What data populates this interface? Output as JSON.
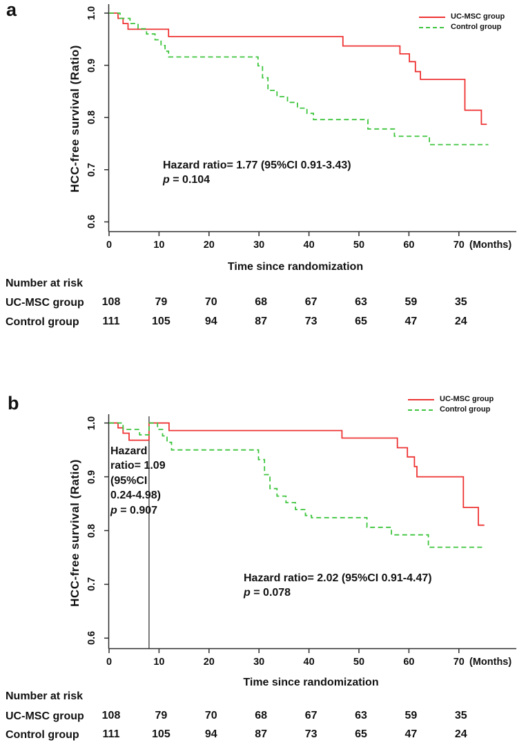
{
  "figure_labels": {
    "panel_a": "a",
    "panel_b": "b"
  },
  "chart_data": [
    {
      "type": "line",
      "kind": "kaplan-meier-step",
      "panel": "a",
      "xlabel": "Time since randomization",
      "x_unit": "(Months)",
      "ylabel": "HCC-free survival (Ratio)",
      "xticks": [
        0,
        10,
        20,
        30,
        40,
        50,
        60,
        70
      ],
      "yticks": [
        "1.0",
        "0.9",
        "0.8",
        "0.7",
        "0.6"
      ],
      "xlim": [
        0,
        79
      ],
      "ylim": [
        0.58,
        1.0
      ],
      "grid": false,
      "legend_position": "top-right",
      "legend": [
        {
          "label": "UC-MSC group",
          "color": "#ee3232",
          "line_style": "solid"
        },
        {
          "label": "Control group",
          "color": "#3cc43c",
          "line_style": "dashed"
        }
      ],
      "series": [
        {
          "name": "UC-MSC group",
          "color": "#ee3232",
          "line_style": "solid",
          "end_month": 75.6,
          "steps": [
            [
              0,
              1.0
            ],
            [
              1.8,
              0.99
            ],
            [
              2.8,
              0.98
            ],
            [
              3.8,
              0.969
            ],
            [
              11.9,
              0.955
            ],
            [
              46.8,
              0.937
            ],
            [
              58.2,
              0.922
            ],
            [
              60.1,
              0.907
            ],
            [
              61.3,
              0.888
            ],
            [
              62.3,
              0.873
            ],
            [
              71.2,
              0.814
            ],
            [
              74.5,
              0.787
            ]
          ]
        },
        {
          "name": "Control group",
          "color": "#3cc43c",
          "line_style": "dashed",
          "end_month": 75.9,
          "steps": [
            [
              0,
              1.0
            ],
            [
              2.2,
              0.99
            ],
            [
              4.2,
              0.98
            ],
            [
              5.8,
              0.97
            ],
            [
              7.5,
              0.96
            ],
            [
              9.2,
              0.949
            ],
            [
              10.4,
              0.938
            ],
            [
              11.2,
              0.927
            ],
            [
              11.9,
              0.916
            ],
            [
              29.8,
              0.899
            ],
            [
              30.7,
              0.876
            ],
            [
              31.8,
              0.852
            ],
            [
              33.6,
              0.84
            ],
            [
              35.7,
              0.829
            ],
            [
              37.7,
              0.818
            ],
            [
              39.6,
              0.808
            ],
            [
              40.9,
              0.796
            ],
            [
              51.8,
              0.778
            ],
            [
              57.1,
              0.764
            ],
            [
              64.1,
              0.748
            ]
          ]
        }
      ],
      "annotations": [
        {
          "lines": [
            "Hazard ratio= 1.77 (95%CI 0.91-3.43)"
          ],
          "p_symbol": "p",
          "p_rest": "= 0.104"
        }
      ],
      "number_at_risk": {
        "header": "Number at risk",
        "times": [
          0,
          10,
          20,
          30,
          40,
          50,
          60,
          70
        ],
        "rows": [
          {
            "label": "UC-MSC group",
            "values": [
              108,
              79,
              70,
              68,
              67,
              63,
              59,
              35
            ]
          },
          {
            "label": "Control group",
            "values": [
              111,
              105,
              94,
              87,
              73,
              65,
              47,
              24
            ]
          }
        ]
      }
    },
    {
      "type": "line",
      "kind": "kaplan-meier-step",
      "panel": "b",
      "xlabel": "Time since randomization",
      "x_unit": "(Months)",
      "ylabel": "HCC-free survival (Ratio)",
      "xticks": [
        0,
        10,
        20,
        30,
        40,
        50,
        60,
        70
      ],
      "yticks": [
        "1.0",
        "0.9",
        "0.8",
        "0.7",
        "0.6"
      ],
      "xlim": [
        0,
        79
      ],
      "ylim": [
        0.58,
        1.0
      ],
      "grid": false,
      "legend_position": "top-right",
      "vline": {
        "x": 8
      },
      "legend": [
        {
          "label": "UC-MSC group",
          "color": "#ee3232",
          "line_style": "solid"
        },
        {
          "label": "Control group",
          "color": "#3cc43c",
          "line_style": "dashed"
        }
      ],
      "series": [
        {
          "name": "UC-MSC group",
          "color": "#ee3232",
          "line_style": "solid",
          "end_month": 75.1,
          "steps": [
            [
              0,
              1.0
            ],
            [
              1.8,
              0.991
            ],
            [
              2.8,
              0.981
            ],
            [
              4.0,
              0.968
            ],
            [
              8.0,
              1.0
            ],
            [
              12.0,
              0.986
            ],
            [
              46.6,
              0.972
            ],
            [
              57.7,
              0.954
            ],
            [
              59.7,
              0.937
            ],
            [
              61.1,
              0.919
            ],
            [
              61.6,
              0.9
            ],
            [
              70.9,
              0.843
            ],
            [
              73.9,
              0.81
            ]
          ]
        },
        {
          "name": "Control group",
          "color": "#3cc43c",
          "line_style": "dashed",
          "end_month": 75.0,
          "steps": [
            [
              0,
              1.0
            ],
            [
              2.8,
              0.988
            ],
            [
              6.1,
              0.978
            ],
            [
              8.0,
              1.0
            ],
            [
              9.7,
              0.988
            ],
            [
              10.7,
              0.976
            ],
            [
              11.6,
              0.964
            ],
            [
              12.5,
              0.95
            ],
            [
              29.9,
              0.932
            ],
            [
              31.1,
              0.904
            ],
            [
              32.2,
              0.878
            ],
            [
              33.6,
              0.864
            ],
            [
              35.4,
              0.852
            ],
            [
              37.3,
              0.839
            ],
            [
              39.3,
              0.828
            ],
            [
              40.5,
              0.824
            ],
            [
              51.6,
              0.806
            ],
            [
              56.5,
              0.792
            ],
            [
              63.9,
              0.769
            ]
          ]
        }
      ],
      "annotations": [
        {
          "lines": [
            "Hazard",
            "ratio= 1.09",
            "(95%CI",
            "0.24-4.98)"
          ],
          "p_symbol": "p",
          "p_rest": "= 0.907"
        },
        {
          "lines": [
            "Hazard ratio= 2.02 (95%CI 0.91-4.47)"
          ],
          "p_symbol": "p",
          "p_rest": "= 0.078"
        }
      ],
      "number_at_risk": {
        "header": "Number at risk",
        "times": [
          0,
          10,
          20,
          30,
          40,
          50,
          60,
          70
        ],
        "rows": [
          {
            "label": "UC-MSC group",
            "values": [
              108,
              79,
              70,
              68,
              67,
              63,
              59,
              35
            ]
          },
          {
            "label": "Control group",
            "values": [
              111,
              105,
              94,
              87,
              73,
              65,
              47,
              24
            ]
          }
        ]
      }
    }
  ]
}
